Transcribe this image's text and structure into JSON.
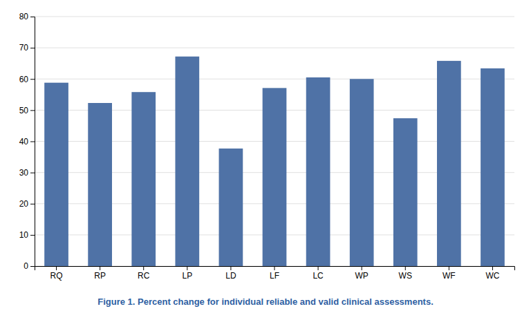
{
  "chart_data": {
    "type": "bar",
    "title": "Figure 1. Percent change for individual reliable and valid clinical assessments.",
    "categories": [
      "RQ",
      "RP",
      "RC",
      "LP",
      "LD",
      "LF",
      "LC",
      "WP",
      "WS",
      "WF",
      "WC"
    ],
    "values": [
      58.8,
      52.3,
      55.8,
      67.2,
      37.7,
      57.1,
      60.5,
      60.0,
      47.4,
      65.8,
      63.4
    ],
    "color": "#4f72a6",
    "ylim": [
      0,
      80
    ],
    "yticks": [
      0,
      10,
      20,
      30,
      40,
      50,
      60,
      70,
      80
    ],
    "grid": true
  }
}
